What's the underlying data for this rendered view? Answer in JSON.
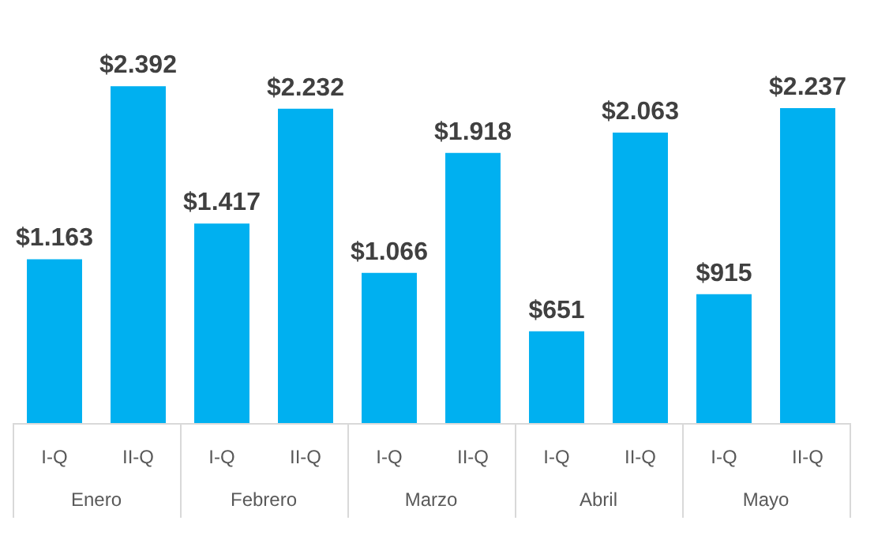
{
  "chart_data": {
    "type": "bar",
    "categories": [
      "I-Q",
      "II-Q",
      "I-Q",
      "II-Q",
      "I-Q",
      "II-Q",
      "I-Q",
      "II-Q",
      "I-Q",
      "II-Q"
    ],
    "values": [
      1163,
      2392,
      1417,
      2232,
      1066,
      1918,
      651,
      2063,
      915,
      2237
    ],
    "value_labels": [
      "$1.163",
      "$2.392",
      "$1.417",
      "$2.232",
      "$1.066",
      "$1.918",
      "$651",
      "$2.063",
      "$915",
      "$2.237"
    ],
    "color": "#00b0f0",
    "annotations": [
      "Enero",
      "Febrero",
      "Marzo",
      "Abril",
      "Mayo"
    ]
  }
}
